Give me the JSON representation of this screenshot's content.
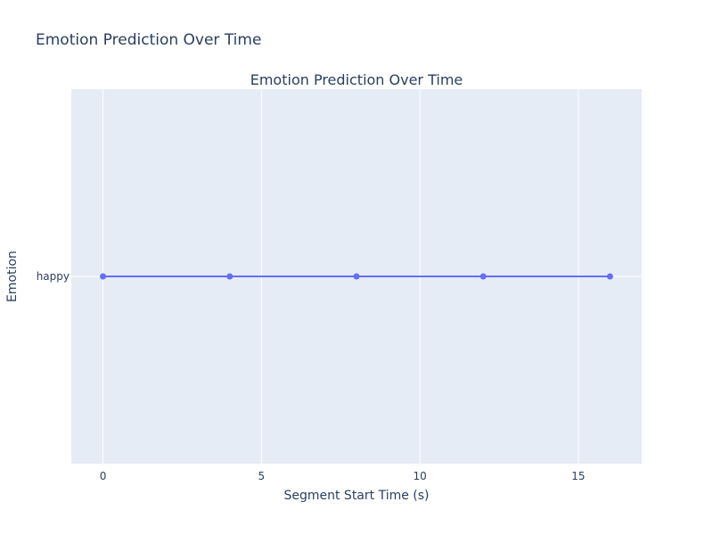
{
  "chart_data": {
    "type": "line",
    "title": "Emotion Prediction Over Time",
    "subtitle": "Emotion Prediction Over Time",
    "xlabel": "Segment Start Time (s)",
    "ylabel": "Emotion",
    "x": [
      0,
      4,
      8,
      12,
      16
    ],
    "y": [
      "happy",
      "happy",
      "happy",
      "happy",
      "happy"
    ],
    "x_ticks": [
      0,
      5,
      10,
      15
    ],
    "y_categories": [
      "happy"
    ],
    "xlim": [
      -1,
      17
    ],
    "grid": true,
    "colors": {
      "plot_bg": "#E5ECF6",
      "grid": "#ffffff",
      "series": "#636EFA",
      "text": "#2a3f5f"
    }
  }
}
